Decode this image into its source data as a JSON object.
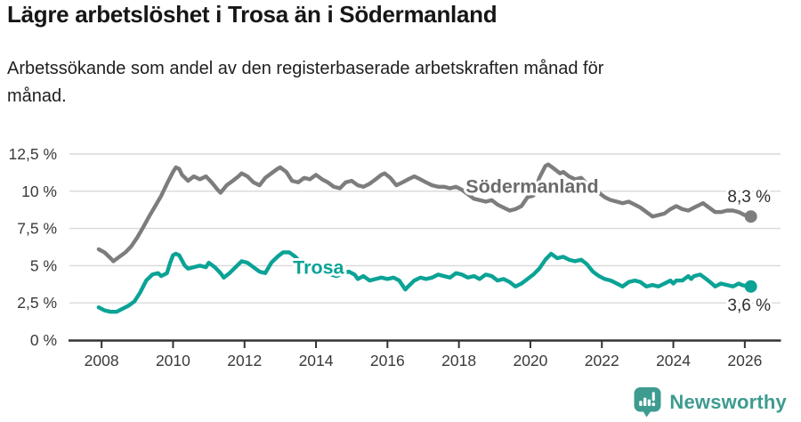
{
  "header": {
    "title": "Lägre arbetslöshet i Trosa än i Södermanland",
    "subtitle": "Arbetssökande som andel av den registerbaserade arbetskraften månad för månad."
  },
  "footer": {
    "brand": "Newsworthy",
    "logo_icon": "bar-chart-speech-bubble-icon"
  },
  "colors": {
    "trosa": "#0aa396",
    "sodermanland": "#7d7d7d",
    "sodermanland_label": "#6b6b6b",
    "axis": "#333333",
    "grid": "#d9d9d9",
    "tick_text": "#3a3a3a",
    "value_label": "#2e2e2e",
    "brand": "#3e9b90"
  },
  "chart_data": {
    "type": "line",
    "title": "Lägre arbetslöshet i Trosa än i Södermanland",
    "xlabel": "",
    "ylabel": "",
    "unit": "%",
    "grid": "horizontal",
    "legend": "inline-labels",
    "xlim": [
      2007.1,
      2027.0
    ],
    "ylim": [
      0,
      12.5
    ],
    "y_ticks": [
      {
        "v": 0,
        "label": "0 %"
      },
      {
        "v": 2.5,
        "label": "2,5 %"
      },
      {
        "v": 5,
        "label": "5 %"
      },
      {
        "v": 7.5,
        "label": "7,5 %"
      },
      {
        "v": 10,
        "label": "10 %"
      },
      {
        "v": 12.5,
        "label": "12,5 %"
      }
    ],
    "x_ticks": [
      {
        "v": 2008,
        "label": "2008"
      },
      {
        "v": 2010,
        "label": "2010"
      },
      {
        "v": 2012,
        "label": "2012"
      },
      {
        "v": 2014,
        "label": "2014"
      },
      {
        "v": 2016,
        "label": "2016"
      },
      {
        "v": 2018,
        "label": "2018"
      },
      {
        "v": 2020,
        "label": "2020"
      },
      {
        "v": 2022,
        "label": "2022"
      },
      {
        "v": 2024,
        "label": "2024"
      },
      {
        "v": 2026,
        "label": "2026"
      }
    ],
    "series": [
      {
        "id": "sodermanland",
        "name": "Södermanland",
        "color": "#7d7d7d",
        "label_color": "#6b6b6b",
        "end_label": "8,3 %",
        "end_label_position": "above",
        "inline_label": {
          "text": "Södermanland",
          "x": 2020.05,
          "y": 10.35
        },
        "points": [
          [
            2007.92,
            6.1
          ],
          [
            2008.08,
            5.9
          ],
          [
            2008.25,
            5.5
          ],
          [
            2008.33,
            5.3
          ],
          [
            2008.5,
            5.6
          ],
          [
            2008.67,
            5.9
          ],
          [
            2008.83,
            6.3
          ],
          [
            2009.0,
            6.9
          ],
          [
            2009.17,
            7.6
          ],
          [
            2009.33,
            8.3
          ],
          [
            2009.5,
            9.0
          ],
          [
            2009.67,
            9.7
          ],
          [
            2009.83,
            10.5
          ],
          [
            2010.0,
            11.3
          ],
          [
            2010.08,
            11.6
          ],
          [
            2010.17,
            11.5
          ],
          [
            2010.25,
            11.1
          ],
          [
            2010.42,
            10.7
          ],
          [
            2010.58,
            11.0
          ],
          [
            2010.75,
            10.8
          ],
          [
            2010.92,
            11.0
          ],
          [
            2011.08,
            10.6
          ],
          [
            2011.25,
            10.1
          ],
          [
            2011.33,
            9.9
          ],
          [
            2011.5,
            10.4
          ],
          [
            2011.67,
            10.7
          ],
          [
            2011.83,
            11.0
          ],
          [
            2011.92,
            11.2
          ],
          [
            2012.08,
            11.0
          ],
          [
            2012.25,
            10.6
          ],
          [
            2012.42,
            10.4
          ],
          [
            2012.58,
            10.9
          ],
          [
            2012.75,
            11.2
          ],
          [
            2012.92,
            11.5
          ],
          [
            2013.0,
            11.6
          ],
          [
            2013.17,
            11.3
          ],
          [
            2013.33,
            10.7
          ],
          [
            2013.5,
            10.6
          ],
          [
            2013.67,
            10.9
          ],
          [
            2013.83,
            10.8
          ],
          [
            2014.0,
            11.1
          ],
          [
            2014.17,
            10.8
          ],
          [
            2014.33,
            10.6
          ],
          [
            2014.5,
            10.3
          ],
          [
            2014.67,
            10.2
          ],
          [
            2014.83,
            10.6
          ],
          [
            2015.0,
            10.7
          ],
          [
            2015.17,
            10.4
          ],
          [
            2015.33,
            10.3
          ],
          [
            2015.5,
            10.5
          ],
          [
            2015.67,
            10.8
          ],
          [
            2015.83,
            11.1
          ],
          [
            2015.92,
            11.2
          ],
          [
            2016.08,
            10.9
          ],
          [
            2016.25,
            10.4
          ],
          [
            2016.42,
            10.6
          ],
          [
            2016.58,
            10.8
          ],
          [
            2016.75,
            11.0
          ],
          [
            2016.92,
            10.8
          ],
          [
            2017.08,
            10.6
          ],
          [
            2017.25,
            10.4
          ],
          [
            2017.42,
            10.3
          ],
          [
            2017.58,
            10.3
          ],
          [
            2017.75,
            10.2
          ],
          [
            2017.92,
            10.3
          ],
          [
            2018.08,
            10.1
          ],
          [
            2018.25,
            9.8
          ],
          [
            2018.42,
            9.5
          ],
          [
            2018.58,
            9.4
          ],
          [
            2018.75,
            9.3
          ],
          [
            2018.92,
            9.4
          ],
          [
            2019.08,
            9.1
          ],
          [
            2019.25,
            8.9
          ],
          [
            2019.42,
            8.7
          ],
          [
            2019.58,
            8.8
          ],
          [
            2019.75,
            9.0
          ],
          [
            2019.92,
            9.6
          ],
          [
            2020.08,
            9.7
          ],
          [
            2020.25,
            10.9
          ],
          [
            2020.42,
            11.7
          ],
          [
            2020.5,
            11.8
          ],
          [
            2020.67,
            11.5
          ],
          [
            2020.83,
            11.2
          ],
          [
            2020.92,
            11.3
          ],
          [
            2021.08,
            11.0
          ],
          [
            2021.25,
            10.8
          ],
          [
            2021.42,
            10.9
          ],
          [
            2021.58,
            10.5
          ],
          [
            2021.75,
            10.2
          ],
          [
            2021.92,
            9.9
          ],
          [
            2022.08,
            9.6
          ],
          [
            2022.25,
            9.4
          ],
          [
            2022.42,
            9.3
          ],
          [
            2022.58,
            9.2
          ],
          [
            2022.75,
            9.3
          ],
          [
            2022.92,
            9.1
          ],
          [
            2023.08,
            8.9
          ],
          [
            2023.25,
            8.6
          ],
          [
            2023.42,
            8.3
          ],
          [
            2023.58,
            8.4
          ],
          [
            2023.75,
            8.5
          ],
          [
            2023.92,
            8.8
          ],
          [
            2024.08,
            9.0
          ],
          [
            2024.25,
            8.8
          ],
          [
            2024.42,
            8.7
          ],
          [
            2024.58,
            8.9
          ],
          [
            2024.75,
            9.1
          ],
          [
            2024.83,
            9.2
          ],
          [
            2025.0,
            8.9
          ],
          [
            2025.17,
            8.6
          ],
          [
            2025.33,
            8.6
          ],
          [
            2025.5,
            8.7
          ],
          [
            2025.67,
            8.7
          ],
          [
            2025.83,
            8.6
          ],
          [
            2026.0,
            8.4
          ],
          [
            2026.17,
            8.3
          ]
        ]
      },
      {
        "id": "trosa",
        "name": "Trosa",
        "color": "#0aa396",
        "label_color": "#0aa396",
        "end_label": "3,6 %",
        "end_label_position": "below",
        "inline_label": {
          "text": "Trosa",
          "x": 2014.07,
          "y": 4.9
        },
        "points": [
          [
            2007.92,
            2.2
          ],
          [
            2008.08,
            2.0
          ],
          [
            2008.25,
            1.9
          ],
          [
            2008.42,
            1.9
          ],
          [
            2008.58,
            2.1
          ],
          [
            2008.75,
            2.3
          ],
          [
            2008.92,
            2.6
          ],
          [
            2009.08,
            3.2
          ],
          [
            2009.25,
            4.0
          ],
          [
            2009.42,
            4.4
          ],
          [
            2009.58,
            4.5
          ],
          [
            2009.67,
            4.3
          ],
          [
            2009.83,
            4.5
          ],
          [
            2009.92,
            5.2
          ],
          [
            2010.0,
            5.7
          ],
          [
            2010.08,
            5.8
          ],
          [
            2010.17,
            5.7
          ],
          [
            2010.33,
            5.0
          ],
          [
            2010.42,
            4.8
          ],
          [
            2010.58,
            4.9
          ],
          [
            2010.75,
            5.0
          ],
          [
            2010.92,
            4.9
          ],
          [
            2011.0,
            5.2
          ],
          [
            2011.17,
            4.9
          ],
          [
            2011.33,
            4.5
          ],
          [
            2011.42,
            4.2
          ],
          [
            2011.58,
            4.5
          ],
          [
            2011.75,
            4.9
          ],
          [
            2011.92,
            5.3
          ],
          [
            2012.08,
            5.2
          ],
          [
            2012.25,
            4.9
          ],
          [
            2012.42,
            4.6
          ],
          [
            2012.58,
            4.5
          ],
          [
            2012.75,
            5.2
          ],
          [
            2012.92,
            5.6
          ],
          [
            2013.08,
            5.9
          ],
          [
            2013.25,
            5.9
          ],
          [
            2013.42,
            5.6
          ],
          [
            2013.58,
            5.2
          ],
          [
            2013.75,
            4.9
          ],
          [
            2013.92,
            5.0
          ],
          [
            2014.08,
            4.8
          ],
          [
            2014.25,
            4.6
          ],
          [
            2014.42,
            4.4
          ],
          [
            2014.58,
            4.3
          ],
          [
            2014.75,
            4.5
          ],
          [
            2014.92,
            4.6
          ],
          [
            2015.08,
            4.4
          ],
          [
            2015.17,
            4.1
          ],
          [
            2015.33,
            4.3
          ],
          [
            2015.5,
            4.0
          ],
          [
            2015.67,
            4.1
          ],
          [
            2015.83,
            4.2
          ],
          [
            2016.0,
            4.1
          ],
          [
            2016.17,
            4.2
          ],
          [
            2016.33,
            4.0
          ],
          [
            2016.5,
            3.4
          ],
          [
            2016.58,
            3.6
          ],
          [
            2016.75,
            4.0
          ],
          [
            2016.92,
            4.2
          ],
          [
            2017.08,
            4.1
          ],
          [
            2017.25,
            4.2
          ],
          [
            2017.42,
            4.4
          ],
          [
            2017.58,
            4.3
          ],
          [
            2017.75,
            4.2
          ],
          [
            2017.92,
            4.5
          ],
          [
            2018.08,
            4.4
          ],
          [
            2018.25,
            4.2
          ],
          [
            2018.42,
            4.3
          ],
          [
            2018.58,
            4.1
          ],
          [
            2018.75,
            4.4
          ],
          [
            2018.92,
            4.3
          ],
          [
            2019.08,
            4.0
          ],
          [
            2019.25,
            4.1
          ],
          [
            2019.42,
            3.9
          ],
          [
            2019.58,
            3.6
          ],
          [
            2019.75,
            3.8
          ],
          [
            2019.92,
            4.1
          ],
          [
            2020.08,
            4.4
          ],
          [
            2020.25,
            4.8
          ],
          [
            2020.42,
            5.4
          ],
          [
            2020.58,
            5.8
          ],
          [
            2020.75,
            5.5
          ],
          [
            2020.92,
            5.6
          ],
          [
            2021.08,
            5.4
          ],
          [
            2021.25,
            5.3
          ],
          [
            2021.42,
            5.4
          ],
          [
            2021.58,
            5.1
          ],
          [
            2021.75,
            4.6
          ],
          [
            2021.92,
            4.3
          ],
          [
            2022.08,
            4.1
          ],
          [
            2022.25,
            4.0
          ],
          [
            2022.42,
            3.8
          ],
          [
            2022.58,
            3.6
          ],
          [
            2022.75,
            3.9
          ],
          [
            2022.92,
            4.0
          ],
          [
            2023.08,
            3.9
          ],
          [
            2023.25,
            3.6
          ],
          [
            2023.42,
            3.7
          ],
          [
            2023.58,
            3.6
          ],
          [
            2023.75,
            3.8
          ],
          [
            2023.92,
            4.0
          ],
          [
            2024.0,
            3.8
          ],
          [
            2024.08,
            4.0
          ],
          [
            2024.25,
            4.0
          ],
          [
            2024.42,
            4.3
          ],
          [
            2024.5,
            4.1
          ],
          [
            2024.58,
            4.3
          ],
          [
            2024.75,
            4.4
          ],
          [
            2024.92,
            4.1
          ],
          [
            2025.08,
            3.8
          ],
          [
            2025.17,
            3.6
          ],
          [
            2025.33,
            3.8
          ],
          [
            2025.5,
            3.7
          ],
          [
            2025.67,
            3.6
          ],
          [
            2025.83,
            3.8
          ],
          [
            2025.92,
            3.7
          ],
          [
            2026.08,
            3.6
          ],
          [
            2026.17,
            3.6
          ]
        ]
      }
    ]
  }
}
